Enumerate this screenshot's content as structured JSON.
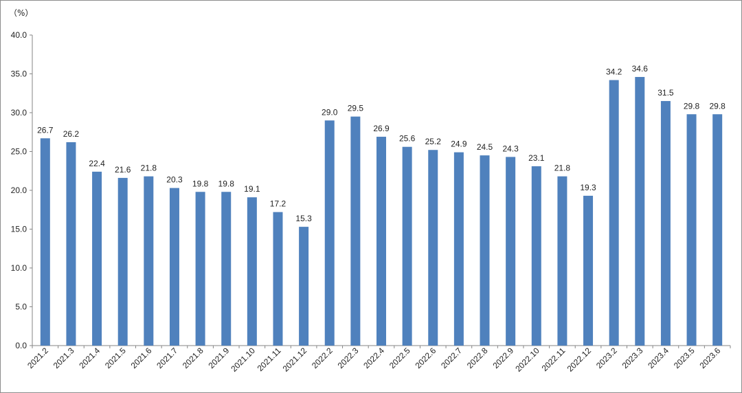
{
  "chart_data": {
    "type": "bar",
    "unit_label": "（%）",
    "title": "",
    "xlabel": "",
    "ylabel": "",
    "ylim": [
      0,
      40
    ],
    "yticks": [
      0.0,
      5.0,
      10.0,
      15.0,
      20.0,
      25.0,
      30.0,
      35.0,
      40.0
    ],
    "ytick_labels": [
      "0.0",
      "5.0",
      "10.0",
      "15.0",
      "20.0",
      "25.0",
      "30.0",
      "35.0",
      "40.0"
    ],
    "grid": false,
    "legend": "none",
    "bar_color": "#4f81bd",
    "categories": [
      "2021.2",
      "2021.3",
      "2021.4",
      "2021.5",
      "2021.6",
      "2021.7",
      "2021.8",
      "2021.9",
      "2021.10",
      "2021.11",
      "2021.12",
      "2022.2",
      "2022.3",
      "2022.4",
      "2022.5",
      "2022.6",
      "2022.7",
      "2022.8",
      "2022.9",
      "2022.10",
      "2022.11",
      "2022.12",
      "2023.2",
      "2023.3",
      "2023.4",
      "2023.5",
      "2023.6"
    ],
    "values": [
      26.7,
      26.2,
      22.4,
      21.6,
      21.8,
      20.3,
      19.8,
      19.8,
      19.1,
      17.2,
      15.3,
      29.0,
      29.5,
      26.9,
      25.6,
      25.2,
      24.9,
      24.5,
      24.3,
      23.1,
      21.8,
      19.3,
      34.2,
      34.6,
      31.5,
      29.8,
      29.8
    ],
    "value_labels": [
      "26.7",
      "26.2",
      "22.4",
      "21.6",
      "21.8",
      "20.3",
      "19.8",
      "19.8",
      "19.1",
      "17.2",
      "15.3",
      "29.0",
      "29.5",
      "26.9",
      "25.6",
      "25.2",
      "24.9",
      "24.5",
      "24.3",
      "23.1",
      "21.8",
      "19.3",
      "34.2",
      "34.6",
      "31.5",
      "29.8",
      "29.8"
    ]
  }
}
